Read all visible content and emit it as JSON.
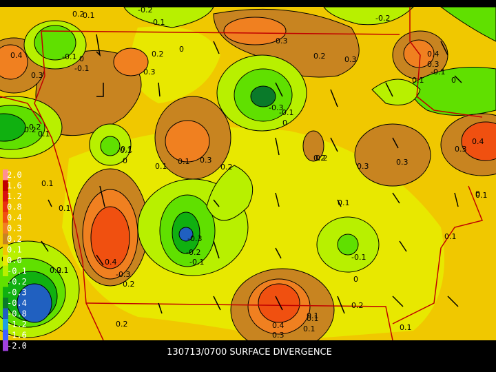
{
  "caption": "130713/0700 SURFACE DIVERGENCE",
  "legend": [
    {
      "label": "2.0",
      "color": "#ff9090"
    },
    {
      "label": "1.6",
      "color": "#c00000"
    },
    {
      "label": "1.2",
      "color": "#d81010"
    },
    {
      "label": "0.8",
      "color": "#e83010"
    },
    {
      "label": "0.4",
      "color": "#f05010"
    },
    {
      "label": "0.3",
      "color": "#f08020"
    },
    {
      "label": "0.2",
      "color": "#c88420"
    },
    {
      "label": "0.1",
      "color": "#f0c800"
    },
    {
      "label": "0.0",
      "color": "#e8e800"
    },
    {
      "label": "-0.1",
      "color": "#b8f000"
    },
    {
      "label": "-0.2",
      "color": "#60e000"
    },
    {
      "label": "-0.3",
      "color": "#10b010"
    },
    {
      "label": "-0.4",
      "color": "#0a7a2a"
    },
    {
      "label": "-0.8",
      "color": "#2060c0"
    },
    {
      "label": "-1.2",
      "color": "#20a0e0"
    },
    {
      "label": "-1.6",
      "color": "#4060ff"
    },
    {
      "label": "-2.0",
      "color": "#a040e0"
    }
  ],
  "contour_labels": [
    "0.2",
    "-0.2",
    "-0.1",
    "0.1",
    "-0.2",
    "0.3",
    "0.4",
    "0.3",
    "-0.1",
    "0",
    "0.1",
    "0.3",
    "0.2",
    "0",
    "0.2",
    "0.3",
    "0.4",
    "0.3",
    "0.2",
    "0.1",
    "-0.1",
    "-0.3",
    "-0.1",
    "0",
    "-0.2",
    "-0.1",
    "0",
    "-0.1",
    "0.1",
    "0.3",
    "0.2",
    "0.2",
    "0.3",
    "0.4",
    "0.3",
    "0.1",
    "0.1",
    "0.1",
    "0.3",
    "0.2",
    "0.1",
    "0.1",
    "0",
    "-0.3",
    "-0.2",
    "-0.1",
    "0.4",
    "-0.3",
    "0.2",
    "0.2",
    "-0.1",
    "0",
    "0.1",
    "0.2",
    "0.4",
    "0.3",
    "0.1",
    "0.1",
    "0.2",
    "0.1",
    "0",
    "0.1",
    "0.1",
    "0.1",
    "0"
  ]
}
